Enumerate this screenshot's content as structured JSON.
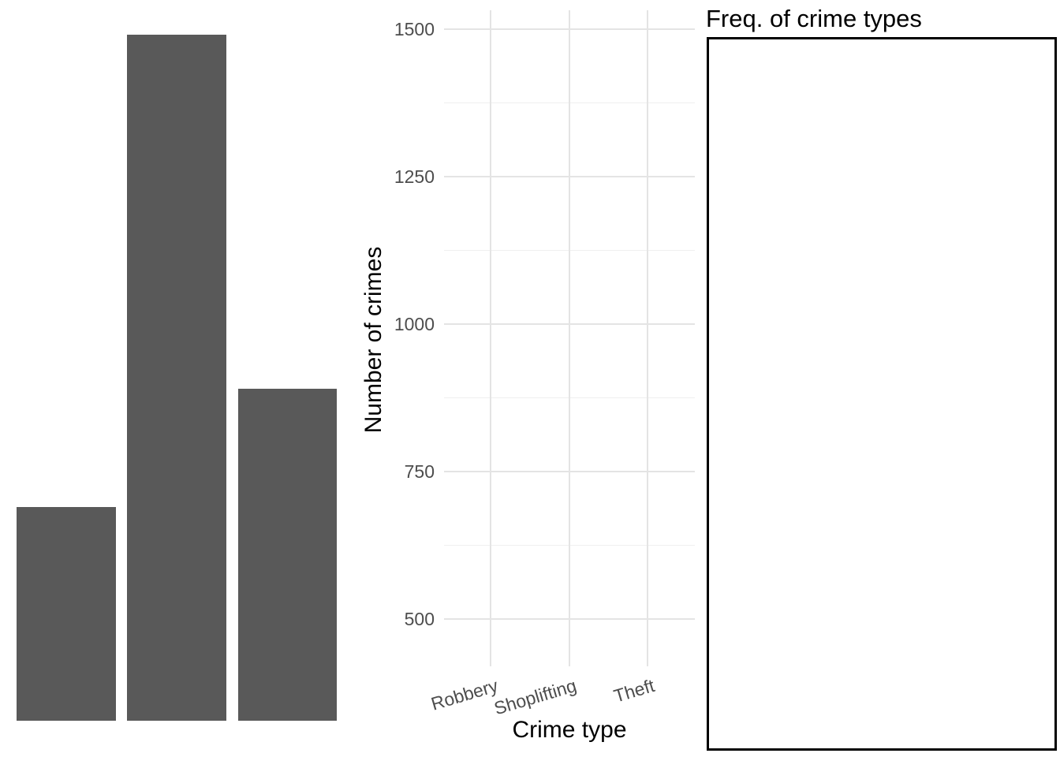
{
  "figure": {
    "background": "#ffffff"
  },
  "colors": {
    "bar_fill": "#595959",
    "grid_major": "#e4e4e4",
    "grid_minor": "#efefef",
    "axis_tick_text": "#4d4d4d",
    "axis_title_text": "#000000",
    "plot_title_text": "#000000",
    "frame_border": "#000000"
  },
  "right_panel": {
    "title": "Freq. of crime types",
    "content_empty": true
  },
  "chart_data": {
    "type": "bar",
    "title": "Freq. of crime types",
    "xlabel": "Crime type",
    "ylabel": "Number of crimes",
    "categories": [
      "Robbery",
      "Shoplifting",
      "Theft"
    ],
    "values": [
      690,
      1490,
      890
    ],
    "y_major_ticks": [
      1500,
      1250,
      1000,
      750,
      500
    ],
    "y_minor_gridlines": [
      1375,
      1125,
      875,
      625
    ],
    "ylim": [
      420,
      1531
    ],
    "grid": "horizontal major+minor and vertical major, light gray on white",
    "legend": "none",
    "x_tick_angle_deg": 17,
    "bar_color": "#595959"
  }
}
